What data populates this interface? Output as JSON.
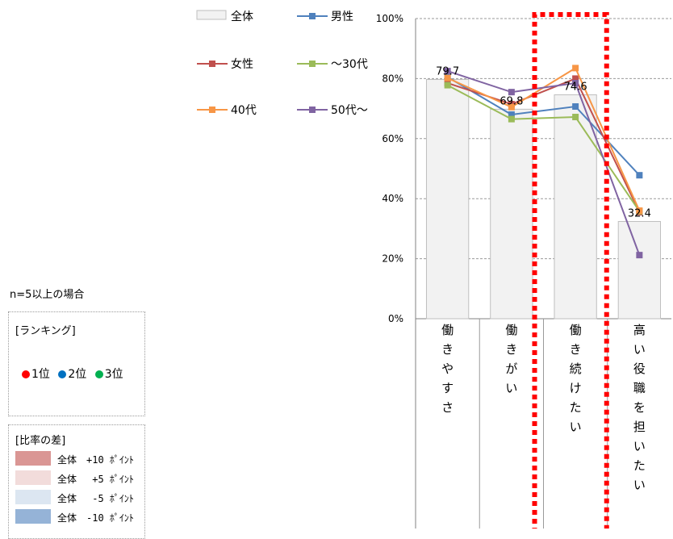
{
  "chart_data": {
    "type": "bar+line",
    "categories": [
      "働きやすさ",
      "働きがい",
      "働き続けたい",
      "高い役職を担いたい"
    ],
    "bar_series": {
      "name": "全体",
      "color": "#f2f2f2",
      "border": "#bfbfbf",
      "values": [
        79.7,
        69.8,
        74.6,
        32.4
      ]
    },
    "series": [
      {
        "name": "男性",
        "color": "#4f81bd",
        "values": [
          80.5,
          68.0,
          70.7,
          47.8
        ]
      },
      {
        "name": "女性",
        "color": "#c0504d",
        "values": [
          78.5,
          71.5,
          80.0,
          35.5
        ]
      },
      {
        "name": "～30代",
        "color": "#9bbb59",
        "values": [
          77.8,
          66.5,
          67.2,
          35.8
        ]
      },
      {
        "name": "40代",
        "color": "#f79646",
        "values": [
          80.2,
          70.5,
          83.5,
          36.0
        ]
      },
      {
        "name": "50代～",
        "color": "#8064a2",
        "values": [
          82.5,
          75.5,
          78.5,
          21.2
        ]
      }
    ],
    "y_ticks": [
      "0%",
      "20%",
      "40%",
      "60%",
      "80%",
      "100%"
    ],
    "ylim": [
      0,
      100
    ],
    "grid": true,
    "legend_position": "top-left",
    "highlight_category": "働き続けたい",
    "highlight_color": "#ff0000"
  },
  "notes": {
    "sample_note": "n=5以上の場合"
  },
  "ranking_legend": {
    "title": "[ランキング]",
    "items": [
      {
        "label": "1位",
        "color": "#ff0000"
      },
      {
        "label": "2位",
        "color": "#0070c0"
      },
      {
        "label": "3位",
        "color": "#00b050"
      }
    ]
  },
  "diff_legend": {
    "title": "[比率の差]",
    "items": [
      {
        "label": "全体　+10 ﾎﾟｲﾝﾄ",
        "color": "#da9694"
      },
      {
        "label": "全体　 +5 ﾎﾟｲﾝﾄ",
        "color": "#f2dcdb"
      },
      {
        "label": "全体　 -5 ﾎﾟｲﾝﾄ",
        "color": "#dce6f1"
      },
      {
        "label": "全体　-10 ﾎﾟｲﾝﾄ",
        "color": "#95b3d7"
      }
    ]
  }
}
